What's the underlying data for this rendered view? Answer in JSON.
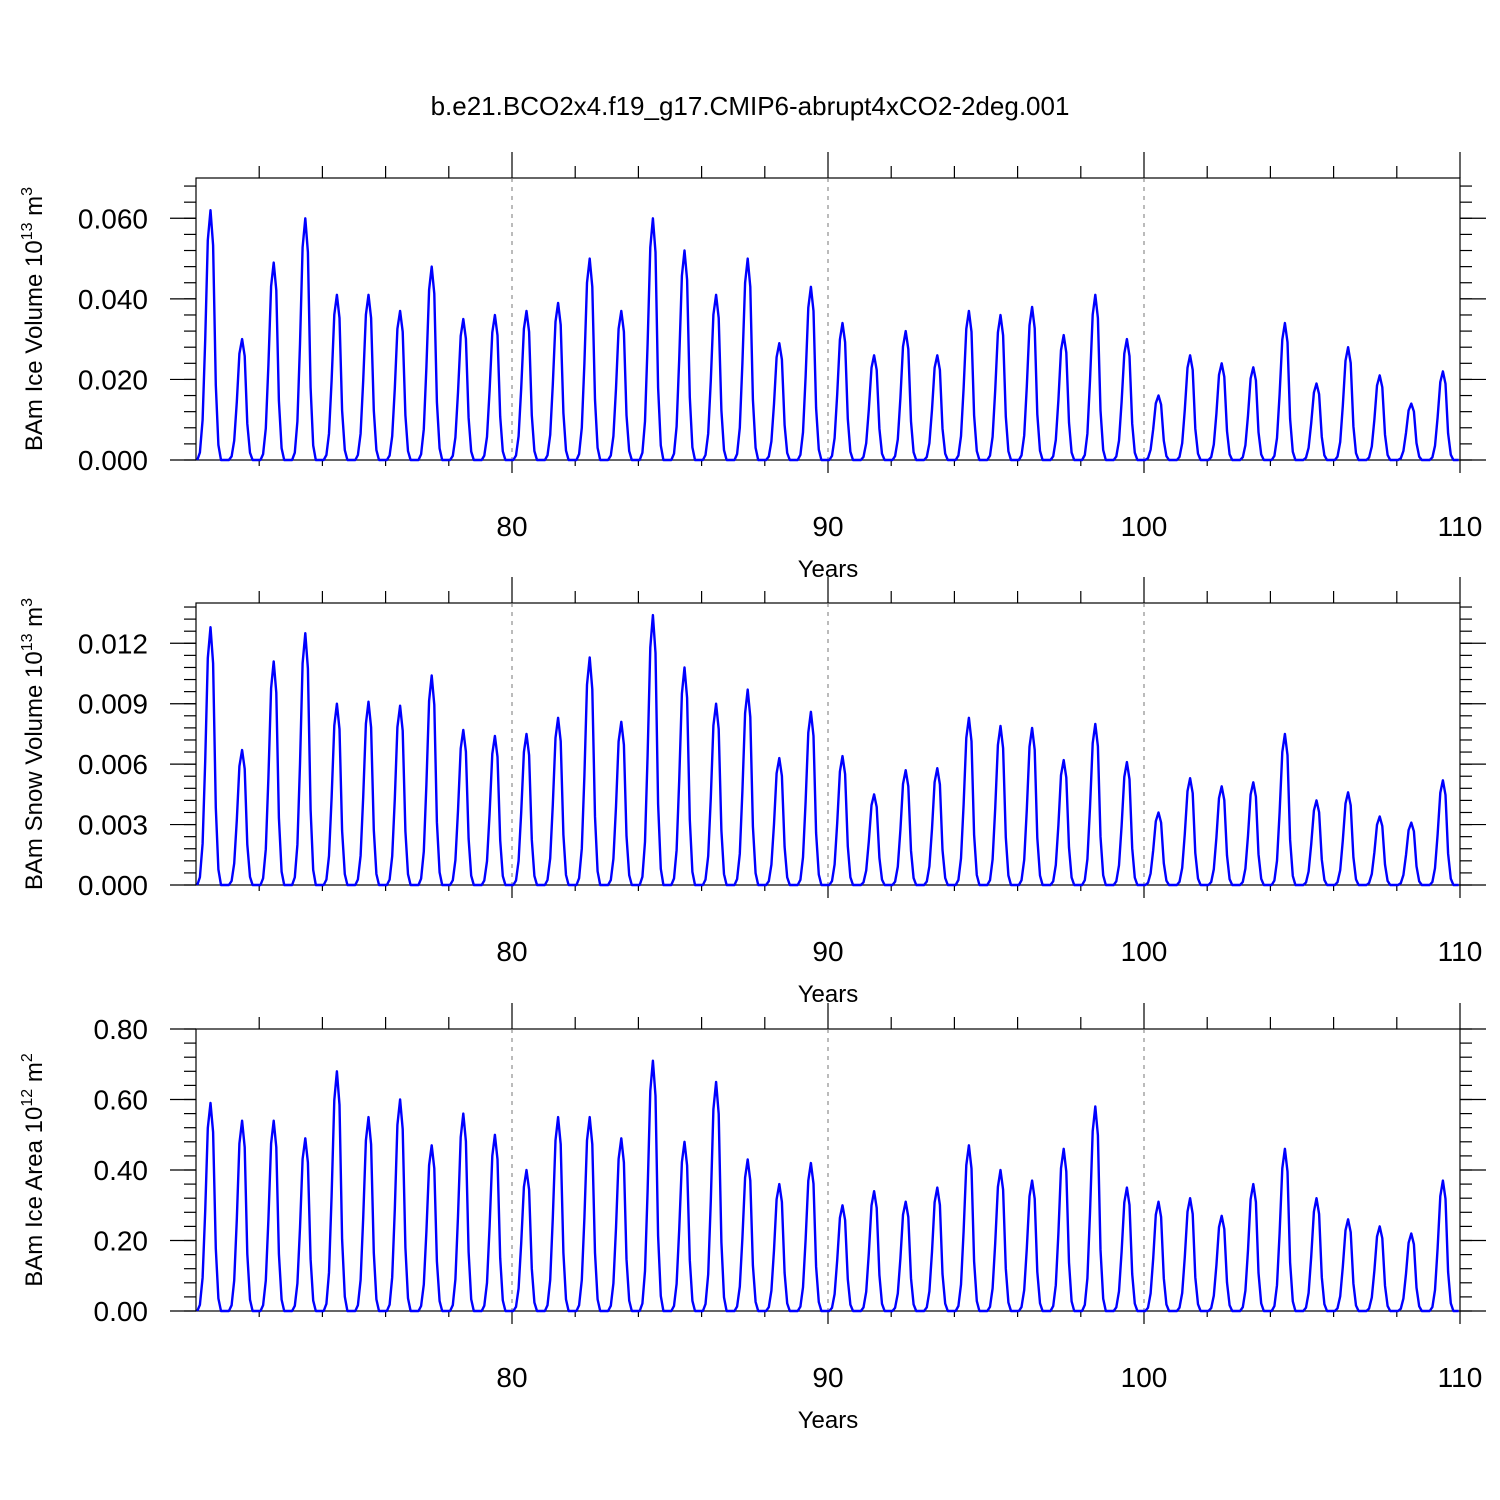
{
  "title": "b.e21.BCO2x4.f19_g17.CMIP6-abrupt4xCO2-2deg.001",
  "chart_data": [
    {
      "type": "line",
      "ylabel": {
        "text": "BAm Ice Volume 10",
        "sup": "13",
        "unit": " m",
        "unit_sup": "3"
      },
      "xlabel": "Years",
      "xlim": [
        70,
        110
      ],
      "ylim": [
        0.0,
        0.07
      ],
      "xticks": [
        80,
        90,
        100,
        110
      ],
      "yticks": [
        0.0,
        0.02,
        0.04,
        0.06
      ],
      "ytick_labels": [
        "0.000",
        "0.020",
        "0.040",
        "0.060"
      ],
      "grid_x": [
        80,
        90,
        100
      ],
      "series": [
        {
          "peaks": [
            0.062,
            0.03,
            0.049,
            0.06,
            0.041,
            0.041,
            0.037,
            0.048,
            0.035,
            0.036,
            0.037,
            0.039,
            0.05,
            0.037,
            0.06,
            0.052,
            0.041,
            0.05,
            0.029,
            0.043,
            0.034,
            0.026,
            0.032,
            0.026,
            0.037,
            0.036,
            0.038,
            0.031,
            0.041,
            0.03,
            0.016,
            0.026,
            0.024,
            0.023,
            0.034,
            0.019,
            0.028,
            0.021,
            0.014,
            0.022
          ]
        }
      ]
    },
    {
      "type": "line",
      "ylabel": {
        "text": "BAm Snow Volume 10",
        "sup": "13",
        "unit": " m",
        "unit_sup": "3"
      },
      "xlabel": "Years",
      "xlim": [
        70,
        110
      ],
      "ylim": [
        0.0,
        0.014
      ],
      "xticks": [
        80,
        90,
        100,
        110
      ],
      "yticks": [
        0.0,
        0.003,
        0.006,
        0.009,
        0.012
      ],
      "ytick_labels": [
        "0.000",
        "0.003",
        "0.006",
        "0.009",
        "0.012"
      ],
      "grid_x": [
        80,
        90,
        100
      ],
      "series": [
        {
          "peaks": [
            0.0128,
            0.0067,
            0.0111,
            0.0125,
            0.009,
            0.0091,
            0.0089,
            0.0104,
            0.0077,
            0.0074,
            0.0075,
            0.0083,
            0.0113,
            0.0081,
            0.0134,
            0.0108,
            0.009,
            0.0097,
            0.0063,
            0.0086,
            0.0064,
            0.0045,
            0.0057,
            0.0058,
            0.0083,
            0.0079,
            0.0078,
            0.0062,
            0.008,
            0.0061,
            0.0036,
            0.0053,
            0.0049,
            0.0051,
            0.0075,
            0.0042,
            0.0046,
            0.0034,
            0.0031,
            0.0052
          ]
        }
      ]
    },
    {
      "type": "line",
      "ylabel": {
        "text": "BAm Ice Area 10",
        "sup": "12",
        "unit": " m",
        "unit_sup": "2"
      },
      "xlabel": "Years",
      "xlim": [
        70,
        110
      ],
      "ylim": [
        0.0,
        0.8
      ],
      "xticks": [
        80,
        90,
        100,
        110
      ],
      "yticks": [
        0.0,
        0.2,
        0.4,
        0.6,
        0.8
      ],
      "ytick_labels": [
        "0.00",
        "0.20",
        "0.40",
        "0.60",
        "0.80"
      ],
      "grid_x": [
        80,
        90,
        100
      ],
      "series": [
        {
          "peaks": [
            0.59,
            0.54,
            0.54,
            0.49,
            0.68,
            0.55,
            0.6,
            0.47,
            0.56,
            0.5,
            0.4,
            0.55,
            0.55,
            0.49,
            0.71,
            0.48,
            0.65,
            0.43,
            0.36,
            0.42,
            0.3,
            0.34,
            0.31,
            0.35,
            0.47,
            0.4,
            0.37,
            0.46,
            0.58,
            0.35,
            0.31,
            0.32,
            0.27,
            0.36,
            0.46,
            0.32,
            0.26,
            0.24,
            0.22,
            0.37
          ]
        }
      ]
    }
  ]
}
